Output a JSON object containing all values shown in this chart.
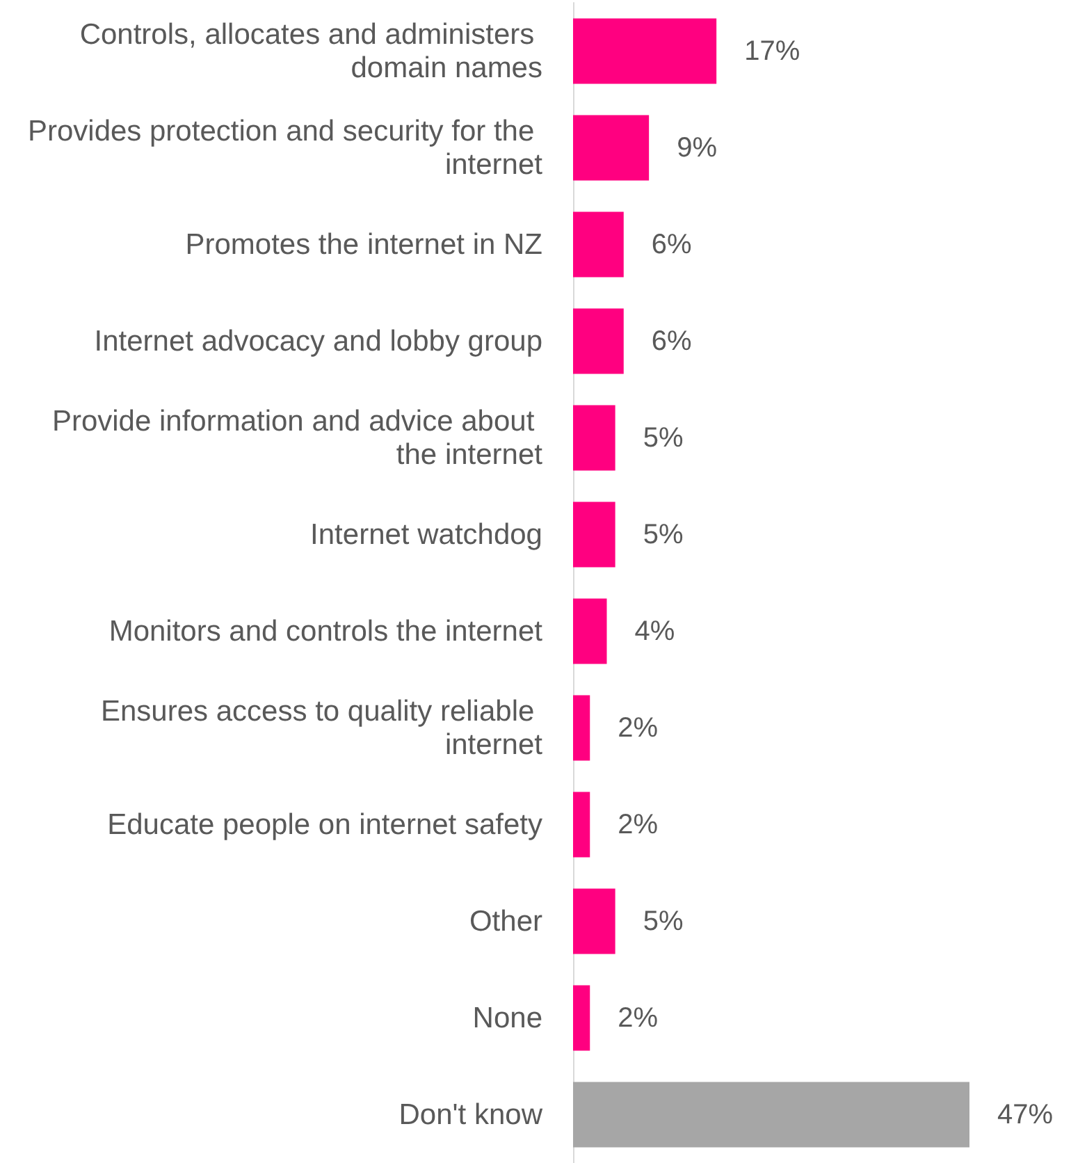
{
  "chart_data": {
    "type": "bar",
    "orientation": "horizontal",
    "categories": [
      "Controls, allocates and administers domain names",
      "Provides protection and security for the internet",
      "Promotes the internet in NZ",
      "Internet advocacy and lobby group",
      "Provide information and advice about the internet",
      "Internet watchdog",
      "Monitors and controls the internet",
      "Ensures access to quality reliable internet",
      "Educate people on internet safety",
      "Other",
      "None",
      "Don't know"
    ],
    "values": [
      17,
      9,
      6,
      6,
      5,
      5,
      4,
      2,
      2,
      5,
      2,
      47
    ],
    "colors": [
      "#ff0080",
      "#ff0080",
      "#ff0080",
      "#ff0080",
      "#ff0080",
      "#ff0080",
      "#ff0080",
      "#ff0080",
      "#ff0080",
      "#ff0080",
      "#ff0080",
      "#a6a6a6"
    ],
    "value_labels": [
      "17%",
      "9%",
      "6%",
      "6%",
      "5%",
      "5%",
      "4%",
      "2%",
      "2%",
      "5%",
      "2%",
      "47%"
    ]
  }
}
